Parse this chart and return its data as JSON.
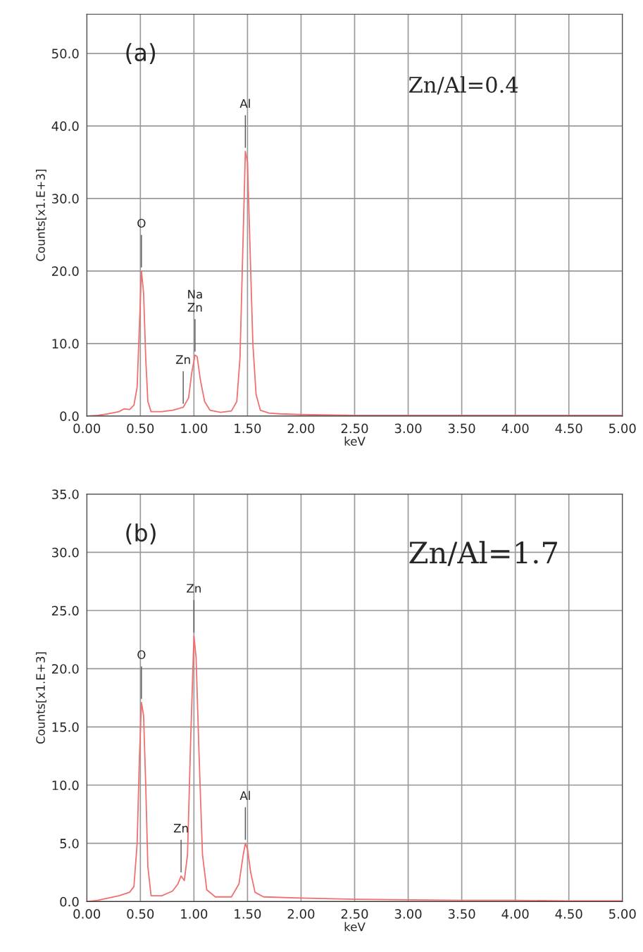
{
  "chart_data": [
    {
      "type": "line",
      "xlabel": "keV",
      "ylabel": "Counts[x1.E+3]",
      "grid": true,
      "xlim": [
        0,
        5
      ],
      "xticks": [
        {
          "value": 0,
          "label": "0.00"
        },
        {
          "value": 0.5,
          "label": "0.50"
        },
        {
          "value": 1,
          "label": "1.00"
        },
        {
          "value": 1.5,
          "label": "1.50"
        },
        {
          "value": 2,
          "label": "2.00"
        },
        {
          "value": 2.5,
          "label": "2.50"
        },
        {
          "value": 3,
          "label": "3.00"
        },
        {
          "value": 3.5,
          "label": "3.50"
        },
        {
          "value": 4,
          "label": "4.00"
        },
        {
          "value": 4.5,
          "label": "4.50"
        },
        {
          "value": 5,
          "label": "5.00"
        }
      ],
      "ylim": [
        0,
        55.4
      ],
      "yticks": [
        {
          "value": 0,
          "label": "0.0"
        },
        {
          "value": 10,
          "label": "10.0"
        },
        {
          "value": 20,
          "label": "20.0"
        },
        {
          "value": 30,
          "label": "30.0"
        },
        {
          "value": 40,
          "label": "40.0"
        },
        {
          "value": 50,
          "label": "50.0"
        }
      ],
      "series": [
        {
          "color": "#f07070",
          "x": [
            0.0,
            0.1,
            0.2,
            0.3,
            0.35,
            0.4,
            0.44,
            0.47,
            0.49,
            0.51,
            0.53,
            0.55,
            0.57,
            0.6,
            0.7,
            0.8,
            0.85,
            0.9,
            0.95,
            0.98,
            1.01,
            1.03,
            1.06,
            1.1,
            1.15,
            1.25,
            1.35,
            1.4,
            1.43,
            1.46,
            1.48,
            1.5,
            1.52,
            1.55,
            1.58,
            1.62,
            1.7,
            1.8,
            2.0,
            2.5,
            3.0,
            3.5,
            4.0,
            4.5,
            5.0
          ],
          "values": [
            0,
            0.1,
            0.3,
            0.6,
            1.0,
            0.9,
            1.5,
            4,
            12,
            20.0,
            17,
            8,
            2,
            0.6,
            0.6,
            0.8,
            1.0,
            1.2,
            2.5,
            6,
            8.4,
            8.2,
            5,
            2,
            0.8,
            0.5,
            0.7,
            2,
            8,
            25,
            36.5,
            35,
            25,
            10,
            3,
            0.8,
            0.4,
            0.3,
            0.2,
            0.1,
            0.1,
            0.1,
            0.1,
            0.1,
            0.1
          ]
        }
      ],
      "annotations": [
        "(a)",
        "Zn/Al=0.4",
        {
          "text": "O",
          "x": 0.51,
          "y": 20.0
        },
        {
          "text": "Zn",
          "x": 0.9,
          "y": 1.2
        },
        {
          "text": "Na\nZn",
          "x": 1.01,
          "y": 8.4
        },
        {
          "text": "Al",
          "x": 1.48,
          "y": 36.5
        }
      ]
    },
    {
      "type": "line",
      "xlabel": "keV",
      "ylabel": "Counts[x1.E+3]",
      "grid": true,
      "xlim": [
        0,
        5
      ],
      "xticks": [
        {
          "value": 0,
          "label": "0.00"
        },
        {
          "value": 0.5,
          "label": "0.50"
        },
        {
          "value": 1,
          "label": "1.00"
        },
        {
          "value": 1.5,
          "label": "1.50"
        },
        {
          "value": 2,
          "label": "2.00"
        },
        {
          "value": 2.5,
          "label": "2.50"
        },
        {
          "value": 3,
          "label": "3.00"
        },
        {
          "value": 3.5,
          "label": "3.50"
        },
        {
          "value": 4,
          "label": "4.00"
        },
        {
          "value": 4.5,
          "label": "4.50"
        },
        {
          "value": 5,
          "label": "5.00"
        }
      ],
      "ylim": [
        0,
        35
      ],
      "yticks": [
        {
          "value": 0,
          "label": "0.0"
        },
        {
          "value": 5,
          "label": "5.0"
        },
        {
          "value": 10,
          "label": "10.0"
        },
        {
          "value": 15,
          "label": "15.0"
        },
        {
          "value": 20,
          "label": "20.0"
        },
        {
          "value": 25,
          "label": "25.0"
        },
        {
          "value": 30,
          "label": "30.0"
        },
        {
          "value": 35,
          "label": "35.0"
        }
      ],
      "series": [
        {
          "color": "#f07070",
          "x": [
            0.0,
            0.1,
            0.2,
            0.3,
            0.4,
            0.44,
            0.47,
            0.49,
            0.51,
            0.53,
            0.55,
            0.57,
            0.6,
            0.7,
            0.8,
            0.85,
            0.88,
            0.91,
            0.94,
            0.97,
            1.0,
            1.02,
            1.05,
            1.08,
            1.12,
            1.2,
            1.35,
            1.42,
            1.46,
            1.48,
            1.5,
            1.53,
            1.57,
            1.65,
            2.0,
            2.5,
            3.0,
            3.5,
            4.0,
            4.5,
            5.0
          ],
          "values": [
            0,
            0.1,
            0.3,
            0.5,
            0.8,
            1.3,
            5,
            12,
            17.1,
            16,
            10,
            3,
            0.5,
            0.5,
            0.9,
            1.5,
            2.2,
            1.8,
            4,
            14,
            22.8,
            21,
            12,
            4,
            1,
            0.4,
            0.4,
            1.5,
            4,
            5.0,
            4.5,
            2.5,
            0.8,
            0.4,
            0.3,
            0.2,
            0.15,
            0.1,
            0.1,
            0.05,
            0.05
          ]
        }
      ],
      "annotations": [
        "(b)",
        "Zn/Al=1.7",
        {
          "text": "O",
          "x": 0.51,
          "y": 17.1
        },
        {
          "text": "Zn",
          "x": 0.88,
          "y": 2.2
        },
        {
          "text": "Zn",
          "x": 1.0,
          "y": 22.8
        },
        {
          "text": "Al",
          "x": 1.48,
          "y": 5.0
        }
      ]
    }
  ]
}
